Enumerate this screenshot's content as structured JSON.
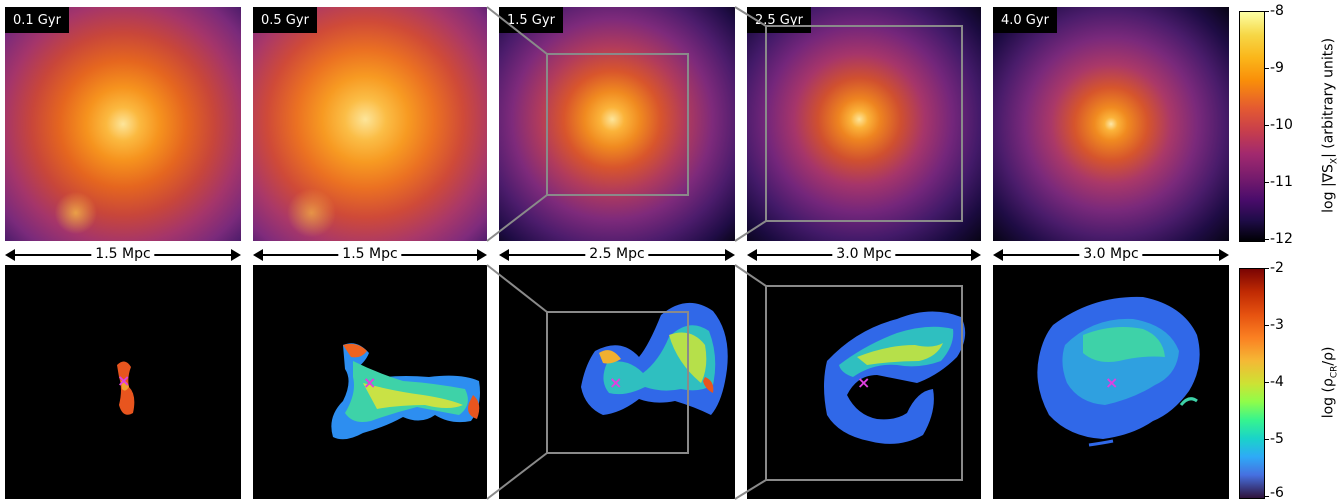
{
  "top_row": {
    "time_labels": [
      "0.1 Gyr",
      "0.5 Gyr",
      "1.5 Gyr",
      "2.5 Gyr",
      "4.0 Gyr"
    ]
  },
  "scale_bars": [
    "1.5 Mpc",
    "1.5 Mpc",
    "2.5 Mpc",
    "3.0 Mpc",
    "3.0 Mpc"
  ],
  "colorbar_top": {
    "label": "log |∇S",
    "label_sub": "X",
    "label_tail": "| (arbitrary units)",
    "ticks": [
      "-8",
      "-9",
      "-10",
      "-11",
      "-12"
    ],
    "colormap": "inferno"
  },
  "colorbar_bottom": {
    "label": "log (ρ",
    "label_sub": "CR",
    "label_tail": "/ρ)",
    "ticks": [
      "-2",
      "-3",
      "-4",
      "-5",
      "-6"
    ],
    "colormap": "turbo"
  },
  "marker_symbol": "×",
  "colors": {
    "marker": "#e040e0",
    "zoom_box": "#8a8a8a"
  }
}
